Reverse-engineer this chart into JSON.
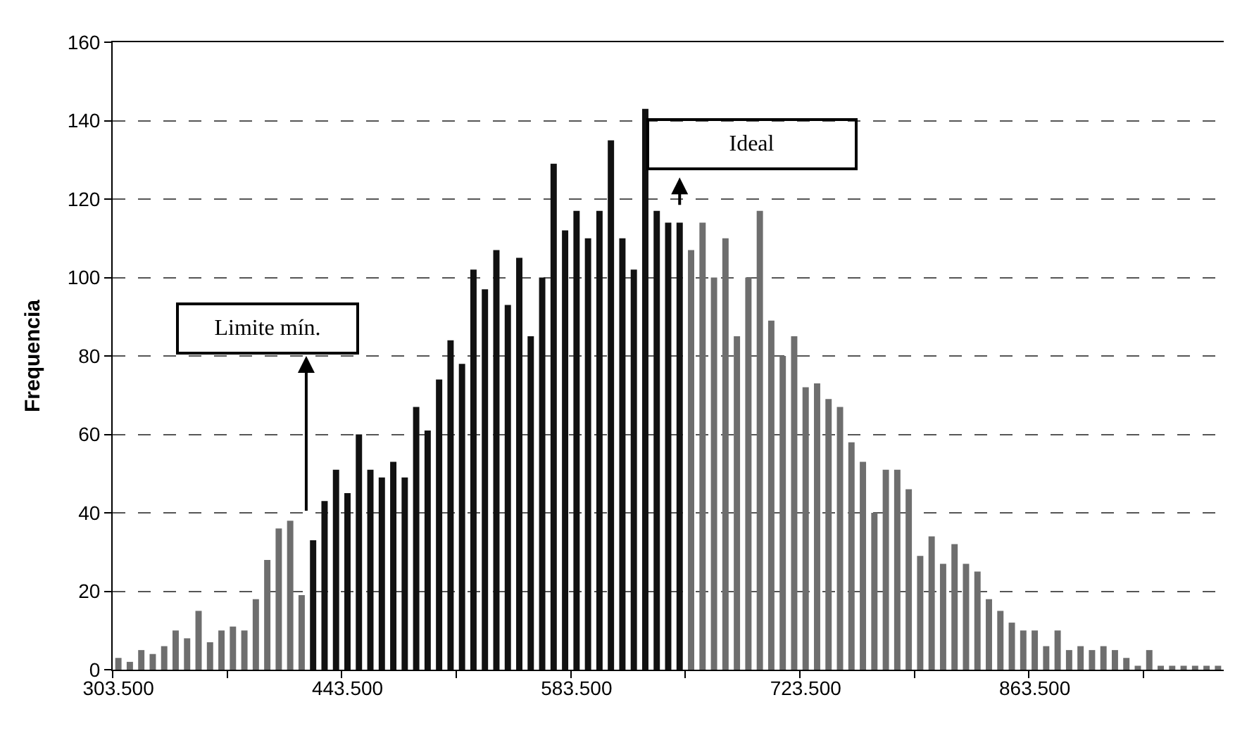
{
  "chart_data": {
    "type": "bar",
    "ylabel": "Frequencia",
    "categories": [
      "303.500",
      null,
      null,
      null,
      null,
      null,
      null,
      null,
      null,
      null,
      null,
      null,
      null,
      null,
      null,
      null,
      null,
      null,
      null,
      null,
      "443.500",
      null,
      null,
      null,
      null,
      null,
      null,
      null,
      null,
      null,
      null,
      null,
      null,
      null,
      null,
      null,
      null,
      null,
      null,
      null,
      "583.500",
      null,
      null,
      null,
      null,
      null,
      null,
      null,
      null,
      null,
      null,
      null,
      null,
      null,
      null,
      null,
      null,
      null,
      null,
      null,
      "723.500",
      null,
      null,
      null,
      null,
      null,
      null,
      null,
      null,
      null,
      null,
      null,
      null,
      null,
      null,
      null,
      null,
      null,
      null,
      null,
      "863.500",
      null,
      null,
      null,
      null,
      null,
      null,
      null,
      null,
      null,
      null,
      null,
      null,
      null,
      null,
      null,
      null
    ],
    "values": [
      3,
      2,
      5,
      4,
      6,
      10,
      8,
      15,
      7,
      10,
      11,
      10,
      18,
      28,
      36,
      38,
      19,
      33,
      43,
      51,
      45,
      60,
      51,
      49,
      53,
      49,
      67,
      61,
      74,
      84,
      78,
      102,
      97,
      107,
      93,
      105,
      85,
      100,
      129,
      112,
      117,
      110,
      117,
      135,
      110,
      102,
      143,
      117,
      114,
      114,
      107,
      114,
      100,
      110,
      85,
      100,
      117,
      89,
      80,
      85,
      72,
      73,
      69,
      67,
      58,
      53,
      40,
      51,
      51,
      46,
      29,
      34,
      27,
      32,
      27,
      25,
      18,
      15,
      12,
      10,
      10,
      6,
      10,
      5,
      6,
      5,
      6,
      5,
      3,
      1,
      5,
      1,
      1,
      1,
      1,
      1,
      1
    ],
    "colors": [
      "#6e6e6e",
      "#6e6e6e",
      "#6e6e6e",
      "#6e6e6e",
      "#6e6e6e",
      "#6e6e6e",
      "#6e6e6e",
      "#6e6e6e",
      "#6e6e6e",
      "#6e6e6e",
      "#6e6e6e",
      "#6e6e6e",
      "#6e6e6e",
      "#6e6e6e",
      "#6e6e6e",
      "#6e6e6e",
      "#6e6e6e",
      "#111111",
      "#111111",
      "#111111",
      "#111111",
      "#111111",
      "#111111",
      "#111111",
      "#111111",
      "#111111",
      "#111111",
      "#111111",
      "#111111",
      "#111111",
      "#111111",
      "#111111",
      "#111111",
      "#111111",
      "#111111",
      "#111111",
      "#111111",
      "#111111",
      "#111111",
      "#111111",
      "#111111",
      "#111111",
      "#111111",
      "#111111",
      "#111111",
      "#111111",
      "#111111",
      "#111111",
      "#111111",
      "#111111",
      "#6e6e6e",
      "#6e6e6e",
      "#6e6e6e",
      "#6e6e6e",
      "#6e6e6e",
      "#6e6e6e",
      "#6e6e6e",
      "#6e6e6e",
      "#6e6e6e",
      "#6e6e6e",
      "#6e6e6e",
      "#6e6e6e",
      "#6e6e6e",
      "#6e6e6e",
      "#6e6e6e",
      "#6e6e6e",
      "#6e6e6e",
      "#6e6e6e",
      "#6e6e6e",
      "#6e6e6e",
      "#6e6e6e",
      "#6e6e6e",
      "#6e6e6e",
      "#6e6e6e",
      "#6e6e6e",
      "#6e6e6e",
      "#6e6e6e",
      "#6e6e6e",
      "#6e6e6e",
      "#6e6e6e",
      "#6e6e6e",
      "#6e6e6e",
      "#6e6e6e",
      "#6e6e6e",
      "#6e6e6e",
      "#6e6e6e",
      "#6e6e6e",
      "#6e6e6e",
      "#6e6e6e",
      "#6e6e6e",
      "#6e6e6e",
      "#6e6e6e",
      "#6e6e6e",
      "#6e6e6e",
      "#6e6e6e",
      "#6e6e6e",
      "#6e6e6e"
    ],
    "ylim": [
      0,
      160
    ],
    "yticks": [
      0,
      20,
      40,
      60,
      80,
      100,
      120,
      140,
      160
    ],
    "grid": "y",
    "annotations": [
      "Limite mín.",
      "Ideal"
    ]
  }
}
